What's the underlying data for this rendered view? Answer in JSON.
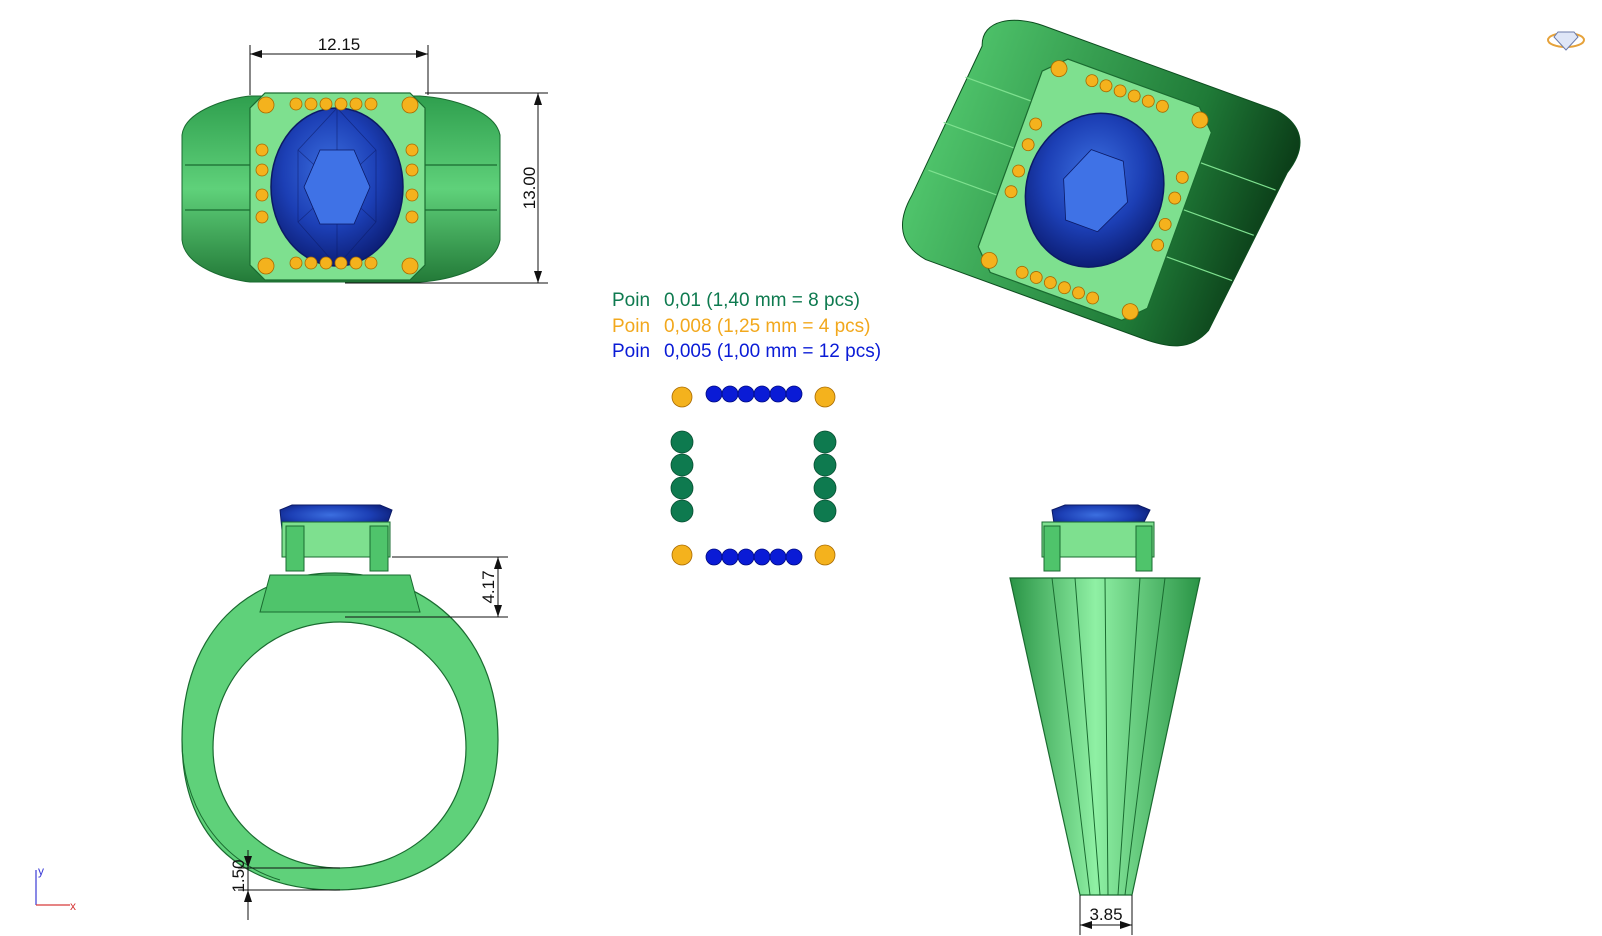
{
  "dimensions": {
    "top_width": "12.15",
    "top_height": "13.00",
    "side_height": "4.17",
    "shank_thickness": "1.50",
    "shank_width": "3.85"
  },
  "legend": [
    {
      "label": "Poin",
      "value": "0,01 (1,40 mm = 8 pcs)",
      "color": "#0e7a4f"
    },
    {
      "label": "Poin",
      "value": "0,008 (1,25 mm = 4 pcs)",
      "color": "#f2a81d"
    },
    {
      "label": "Poin",
      "value": "0,005 (1,00 mm = 12 pcs)",
      "color": "#0a1bd6"
    }
  ],
  "axis": {
    "y": "y",
    "x": "x"
  },
  "colors": {
    "metal": "#5fd17a",
    "metal_dark": "#1f8a3e",
    "gem": "#1c3fb5",
    "side_stone": "#f4b21d",
    "line": "#111111"
  }
}
